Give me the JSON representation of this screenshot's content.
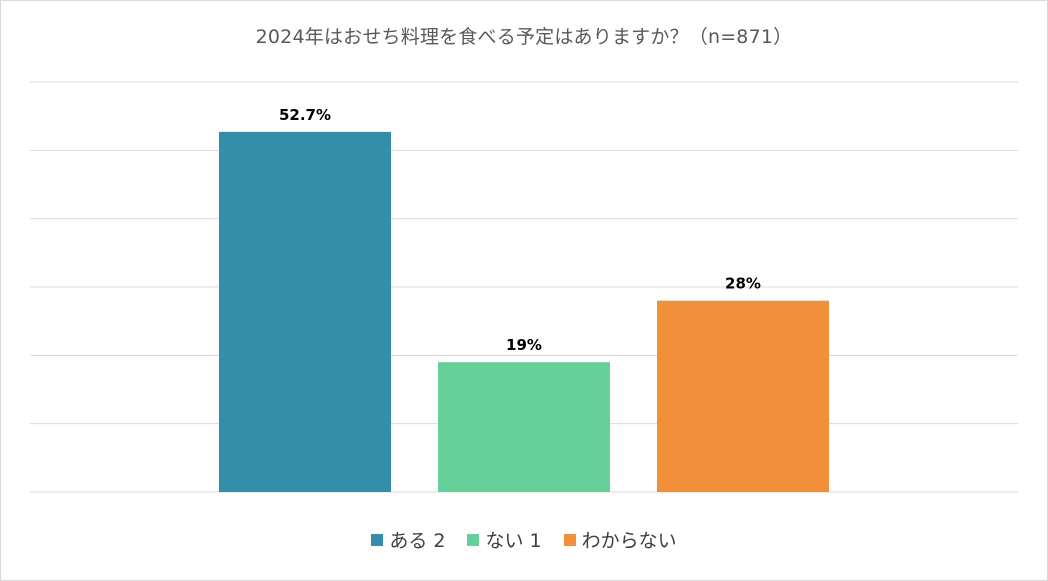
{
  "chart_data": {
    "type": "bar",
    "title": "2024年はおせち料理を食べる予定はありますか？（n=871）",
    "categories": [
      "ある 2",
      "ない 1",
      "わからない"
    ],
    "values": [
      52.7,
      19,
      28
    ],
    "data_labels": [
      "52.7%",
      "19%",
      "28%"
    ],
    "colors": [
      "#348ea9",
      "#67cf9a",
      "#f28f3b"
    ],
    "ylim": [
      0,
      60
    ],
    "grid": true,
    "legend_position": "bottom",
    "legend": [
      {
        "label": "ある 2",
        "color": "#348ea9"
      },
      {
        "label": "ない 1",
        "color": "#67cf9a"
      },
      {
        "label": "わからない",
        "color": "#f28f3b"
      }
    ]
  }
}
